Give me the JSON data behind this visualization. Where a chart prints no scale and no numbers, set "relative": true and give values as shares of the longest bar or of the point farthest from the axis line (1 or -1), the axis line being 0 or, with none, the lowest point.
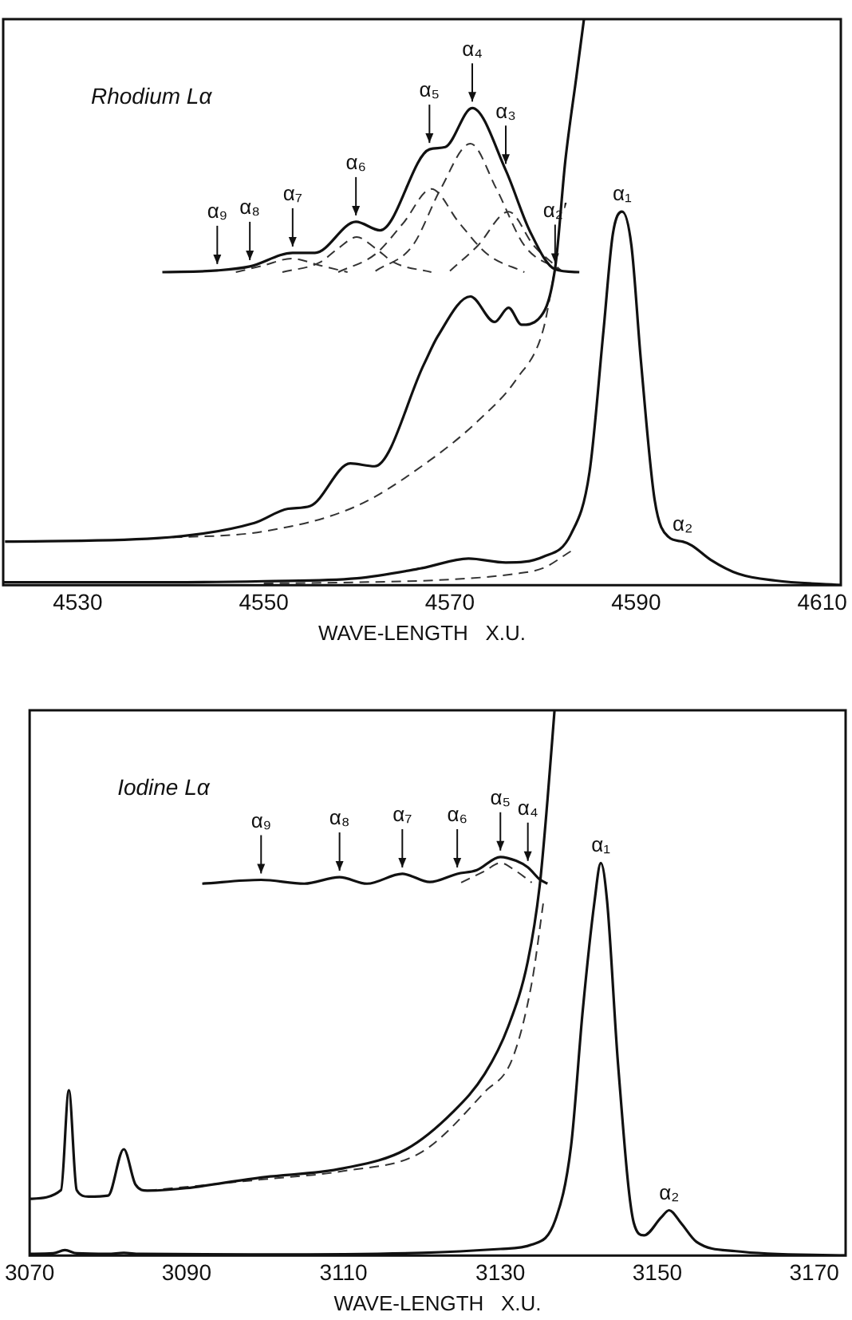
{
  "chart_data": [
    {
      "type": "line",
      "title": "Rhodium Lα",
      "xlabel": "WAVE-LENGTH   X.U.",
      "relative": true,
      "xlim": [
        4522,
        4612
      ],
      "xticks": [
        4530,
        4550,
        4570,
        4590,
        4610
      ],
      "grid": false,
      "legend": false,
      "marker": "none",
      "series": [
        {
          "color": "#111111",
          "line_style": "solid",
          "x": [
            4522,
            4540,
            4550,
            4560,
            4567,
            4572,
            4576,
            4580,
            4583,
            4585,
            4586.5,
            4587.5,
            4588.5,
            4589.5,
            4590.5,
            4592,
            4593.5,
            4595,
            4596,
            4598,
            4601,
            4605,
            4612
          ],
          "values": [
            0.005,
            0.005,
            0.007,
            0.012,
            0.03,
            0.047,
            0.04,
            0.05,
            0.09,
            0.2,
            0.45,
            0.62,
            0.66,
            0.6,
            0.4,
            0.15,
            0.085,
            0.077,
            0.07,
            0.045,
            0.02,
            0.008,
            0.0
          ]
        },
        {
          "color": "#111111",
          "line_style": "solid",
          "x": [
            4522.2,
            4538.5,
            4549,
            4552.6,
            4555,
            4559.3,
            4561.9,
            4567.2,
            4568.7,
            4572.2,
            4574.8,
            4576.3,
            4577.7,
            4579.5,
            4581.3,
            4582.4,
            4583.6,
            4584.4
          ],
          "values": [
            0.077,
            0.083,
            0.11,
            0.135,
            0.14,
            0.215,
            0.21,
            0.39,
            0.44,
            0.51,
            0.465,
            0.49,
            0.46,
            0.47,
            0.56,
            0.75,
            0.9,
            1.0
          ]
        },
        {
          "color": "#333333",
          "line_style": "dashed",
          "x": [
            4538.5,
            4550,
            4560,
            4567.8,
            4573,
            4577.2,
            4580,
            4581.3
          ],
          "values": [
            0.083,
            0.095,
            0.14,
            0.22,
            0.29,
            0.365,
            0.45,
            0.56
          ]
        },
        {
          "color": "#333333",
          "line_style": "dashed",
          "x": [
            4550,
            4560,
            4570,
            4577,
            4580,
            4583
          ],
          "values": [
            0.003,
            0.005,
            0.01,
            0.02,
            0.03,
            0.06
          ]
        },
        {
          "color": "#111111",
          "line_style": "solid",
          "x": [
            4539.1,
            4545,
            4548.5,
            4553.1,
            4555.5,
            4559.9,
            4562.5,
            4567.8,
            4569.5,
            4572.4,
            4576,
            4578.6,
            4581.3,
            4583.9
          ],
          "values": [
            0.553,
            0.556,
            0.563,
            0.587,
            0.587,
            0.642,
            0.627,
            0.77,
            0.774,
            0.843,
            0.733,
            0.625,
            0.558,
            0.553
          ]
        },
        {
          "color": "#333333",
          "line_style": "dashed",
          "x": [
            4547,
            4550,
            4553,
            4556,
            4559
          ],
          "values": [
            0.553,
            0.565,
            0.577,
            0.565,
            0.553
          ]
        },
        {
          "color": "#333333",
          "line_style": "dashed",
          "x": [
            4552,
            4556,
            4558,
            4560,
            4562,
            4564,
            4568
          ],
          "values": [
            0.553,
            0.57,
            0.595,
            0.615,
            0.595,
            0.57,
            0.553
          ]
        },
        {
          "color": "#333333",
          "line_style": "dashed",
          "x": [
            4558,
            4562,
            4565,
            4568,
            4571,
            4574,
            4578
          ],
          "values": [
            0.553,
            0.585,
            0.64,
            0.7,
            0.64,
            0.585,
            0.553
          ]
        },
        {
          "color": "#333333",
          "line_style": "dashed",
          "x": [
            4562,
            4566,
            4569,
            4572.2,
            4575,
            4578,
            4582
          ],
          "values": [
            0.555,
            0.6,
            0.7,
            0.78,
            0.7,
            0.6,
            0.555
          ]
        },
        {
          "color": "#333333",
          "line_style": "dashed",
          "x": [
            4570,
            4573,
            4576.3,
            4579,
            4582
          ],
          "values": [
            0.555,
            0.6,
            0.66,
            0.6,
            0.555
          ]
        }
      ],
      "annotations": [
        {
          "text": "α₉",
          "x": 4545,
          "y": 0.556
        },
        {
          "text": "α₈",
          "x": 4548.5,
          "y": 0.563
        },
        {
          "text": "α₇",
          "x": 4553.1,
          "y": 0.587
        },
        {
          "text": "α₆",
          "x": 4559.9,
          "y": 0.642
        },
        {
          "text": "α₅",
          "x": 4567.8,
          "y": 0.77
        },
        {
          "text": "α₄",
          "x": 4572.4,
          "y": 0.843
        },
        {
          "text": "α₃",
          "x": 4576,
          "y": 0.733
        },
        {
          "text": "α₂′",
          "x": 4581.3,
          "y": 0.558
        },
        {
          "text": "α₁",
          "x": 4588.5,
          "y": 0.66
        },
        {
          "text": "α₂",
          "x": 4595,
          "y": 0.077
        }
      ]
    },
    {
      "type": "line",
      "title": "Iodine Lα",
      "xlabel": "WAVE-LENGTH   X.U.",
      "relative": true,
      "xlim": [
        3070,
        3174
      ],
      "xticks": [
        3070,
        3090,
        3110,
        3130,
        3150,
        3170
      ],
      "grid": false,
      "legend": false,
      "marker": "none",
      "series": [
        {
          "color": "#111111",
          "line_style": "solid",
          "x": [
            3070,
            3073,
            3074.5,
            3076,
            3080,
            3082,
            3084,
            3100,
            3120,
            3130,
            3134,
            3137,
            3139,
            3140.5,
            3142,
            3142.8,
            3143.6,
            3145,
            3147,
            3148.3,
            3150.5,
            3151.5,
            3153,
            3155,
            3160,
            3174
          ],
          "values": [
            0.003,
            0.004,
            0.01,
            0.004,
            0.003,
            0.005,
            0.003,
            0.002,
            0.005,
            0.012,
            0.02,
            0.065,
            0.2,
            0.45,
            0.65,
            0.72,
            0.65,
            0.35,
            0.06,
            0.037,
            0.07,
            0.083,
            0.06,
            0.025,
            0.008,
            0.0
          ]
        },
        {
          "color": "#111111",
          "line_style": "solid",
          "x": [
            3070,
            3074,
            3075,
            3076,
            3077.5,
            3080,
            3082,
            3083.5,
            3085,
            3100,
            3110,
            3118,
            3124,
            3128,
            3131,
            3133.5,
            3135,
            3136,
            3136.9
          ],
          "values": [
            0.104,
            0.12,
            0.303,
            0.12,
            0.108,
            0.11,
            0.195,
            0.13,
            0.119,
            0.144,
            0.16,
            0.195,
            0.264,
            0.333,
            0.42,
            0.54,
            0.677,
            0.835,
            1.0
          ]
        },
        {
          "color": "#333333",
          "line_style": "dashed",
          "x": [
            3085,
            3100,
            3110,
            3120,
            3128,
            3131.5,
            3134,
            3135.5
          ],
          "values": [
            0.119,
            0.14,
            0.155,
            0.19,
            0.3,
            0.36,
            0.5,
            0.65
          ]
        },
        {
          "color": "#111111",
          "line_style": "solid",
          "x": [
            3092,
            3099.5,
            3105,
            3109.5,
            3113,
            3117.5,
            3121,
            3124.5,
            3127,
            3130,
            3132,
            3133.5,
            3135,
            3136
          ],
          "values": [
            0.682,
            0.689,
            0.682,
            0.694,
            0.682,
            0.7,
            0.685,
            0.7,
            0.707,
            0.731,
            0.724,
            0.712,
            0.69,
            0.682
          ]
        },
        {
          "color": "#333333",
          "line_style": "dashed",
          "x": [
            3125,
            3128,
            3130,
            3132,
            3134
          ],
          "values": [
            0.684,
            0.705,
            0.72,
            0.705,
            0.684
          ]
        }
      ],
      "annotations": [
        {
          "text": "α₉",
          "x": 3099.5,
          "y": 0.689
        },
        {
          "text": "α₈",
          "x": 3109.5,
          "y": 0.694
        },
        {
          "text": "α₇",
          "x": 3117.5,
          "y": 0.7
        },
        {
          "text": "α₆",
          "x": 3124.5,
          "y": 0.7
        },
        {
          "text": "α₅",
          "x": 3130,
          "y": 0.731
        },
        {
          "text": "α₄",
          "x": 3133.5,
          "y": 0.712
        },
        {
          "text": "α₁",
          "x": 3142.8,
          "y": 0.72
        },
        {
          "text": "α₂",
          "x": 3151.5,
          "y": 0.083
        }
      ]
    }
  ]
}
